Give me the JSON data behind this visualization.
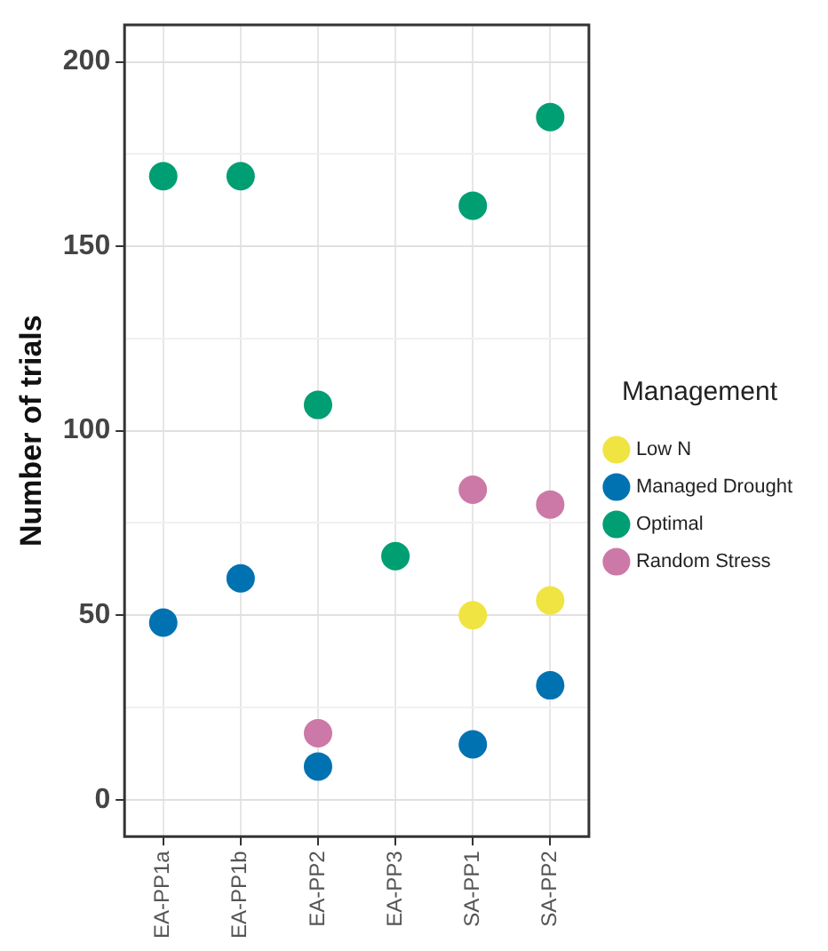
{
  "chart_data": {
    "type": "scatter",
    "ylabel": "Number of trials",
    "legend_title": "Management",
    "categories": [
      "EA-PP1a",
      "EA-PP1b",
      "EA-PP2",
      "EA-PP3",
      "SA-PP1",
      "SA-PP2"
    ],
    "series": [
      {
        "name": "Low N",
        "color": "#f0e442",
        "values": [
          null,
          null,
          null,
          null,
          50,
          54
        ]
      },
      {
        "name": "Managed Drought",
        "color": "#0072b2",
        "values": [
          48,
          60,
          9,
          null,
          15,
          31
        ]
      },
      {
        "name": "Optimal",
        "color": "#009e73",
        "values": [
          169,
          169,
          107,
          66,
          161,
          185
        ]
      },
      {
        "name": "Random Stress",
        "color": "#cc79a7",
        "values": [
          null,
          null,
          18,
          null,
          84,
          80
        ]
      }
    ],
    "ylim": [
      -10,
      210
    ],
    "yticks": [
      0,
      {
        "value": 25,
        "label": null
      },
      50,
      {
        "value": 75,
        "label": null
      },
      100,
      {
        "value": 125,
        "label": null
      },
      150,
      {
        "value": 175,
        "label": null
      },
      200
    ],
    "grid": true,
    "legend": "right",
    "marker": "circle"
  }
}
